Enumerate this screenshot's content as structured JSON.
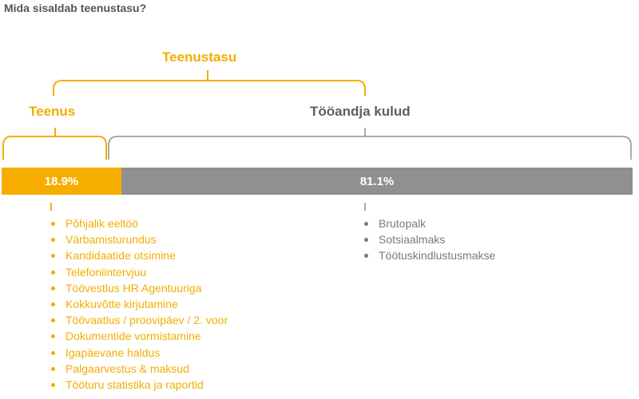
{
  "title": "Mida sisaldab teenustasu?",
  "labels": {
    "fee": "Teenustasu",
    "service": "Teenus",
    "employer_costs": "Tööandja kulud"
  },
  "bar": {
    "service_value": "18.9%",
    "employer_value": "81.1%",
    "service_fraction": 0.189,
    "employer_fraction": 0.811
  },
  "service_items": [
    "Põhjalik eeltöö",
    "Värbamisturundus",
    "Kandidaatide otsimine",
    "Telefoniintervjuu",
    "Töövestlus HR Agentuuriga",
    "Kokkuvõtte kirjutamine",
    "Töövaatlus / proovipäev / 2. voor",
    "Dokumentide vormistamine",
    "Igapäevane haldus",
    "Palgaarvestus & maksud",
    "Tööturu statistika ja raportid"
  ],
  "employer_items": [
    "Brutopalk",
    "Sotsiaalmaks",
    "Töötuskindlustusmakse"
  ],
  "colors": {
    "accent": "#f7ad00",
    "gray": "#909090",
    "text_gray": "#5e5e5e"
  }
}
